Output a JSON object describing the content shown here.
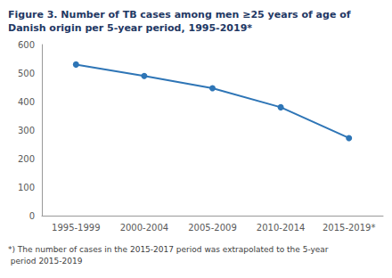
{
  "chart_data": {
    "type": "line",
    "title": "Figure 3. Number of TB cases among men ≥25 years of age of Danish origin per 5-year period, 1995-2019*",
    "annotation": "*) The number of cases in the 2015-2017 period was extrapolated to the 5-year period 2015-2019",
    "categories": [
      "1995-1999",
      "2000-2004",
      "2005-2009",
      "2010-2014",
      "2015-2019*"
    ],
    "values": [
      530,
      490,
      447,
      380,
      272
    ],
    "color": "#2e75b6",
    "marker": "circle",
    "ylim": [
      0,
      600
    ],
    "yticks": [
      0,
      100,
      200,
      300,
      400,
      500,
      600
    ],
    "grid": false
  }
}
